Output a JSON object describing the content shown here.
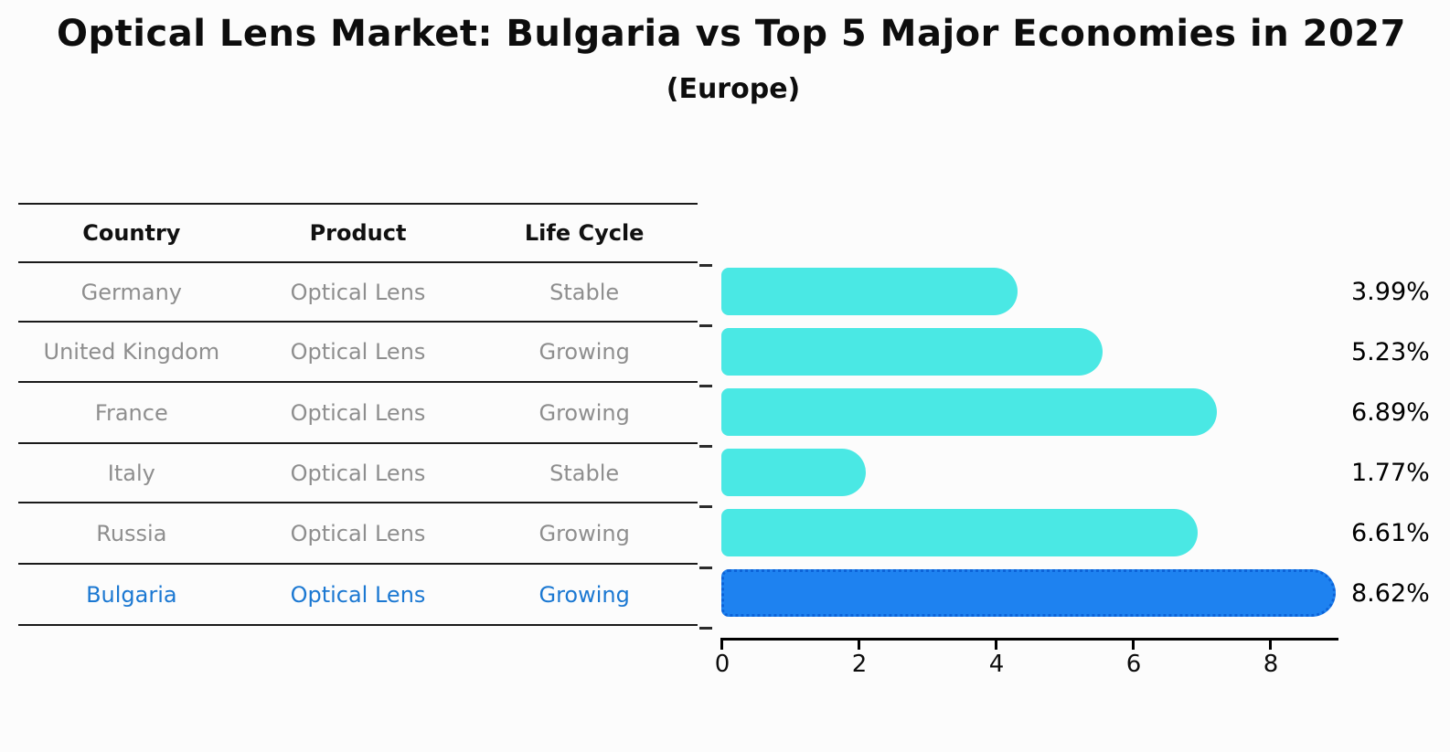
{
  "title": "Optical Lens Market: Bulgaria vs Top 5 Major Economies in 2027",
  "subtitle": "(Europe)",
  "table": {
    "headers": [
      "Country",
      "Product",
      "Life Cycle"
    ],
    "rows": [
      {
        "country": "Germany",
        "product": "Optical Lens",
        "life_cycle": "Stable",
        "highlight": false
      },
      {
        "country": "United Kingdom",
        "product": "Optical Lens",
        "life_cycle": "Growing",
        "highlight": false
      },
      {
        "country": "France",
        "product": "Optical Lens",
        "life_cycle": "Growing",
        "highlight": false
      },
      {
        "country": "Italy",
        "product": "Optical Lens",
        "life_cycle": "Stable",
        "highlight": false
      },
      {
        "country": "Russia",
        "product": "Optical Lens",
        "life_cycle": "Growing",
        "highlight": false
      },
      {
        "country": "Bulgaria",
        "product": "Optical Lens",
        "life_cycle": "Growing",
        "highlight": true
      }
    ]
  },
  "chart_data": {
    "type": "bar",
    "orientation": "horizontal",
    "categories": [
      "Germany",
      "United Kingdom",
      "France",
      "Italy",
      "Russia",
      "Bulgaria"
    ],
    "values": [
      3.99,
      5.23,
      6.89,
      1.77,
      6.61,
      8.62
    ],
    "labels": [
      "3.99%",
      "5.23%",
      "6.89%",
      "1.77%",
      "6.61%",
      "8.62%"
    ],
    "highlight_index": 5,
    "x_ticks": [
      "0",
      "2",
      "4",
      "6",
      "8"
    ],
    "xlim": [
      0,
      9
    ],
    "grid": false,
    "legend": false,
    "title": "Optical Lens Market: Bulgaria vs Top 5 Major Economies in 2027 (Europe)",
    "xlabel": "",
    "ylabel": ""
  },
  "colors": {
    "bar": "#4ae8e4",
    "highlight_bar": "#1e82f0",
    "highlight_border": "#0c63d8",
    "highlight_text": "#1b78d2",
    "row_text": "#8e8e8e",
    "header_text": "#111111",
    "background": "#fcfcfc"
  }
}
